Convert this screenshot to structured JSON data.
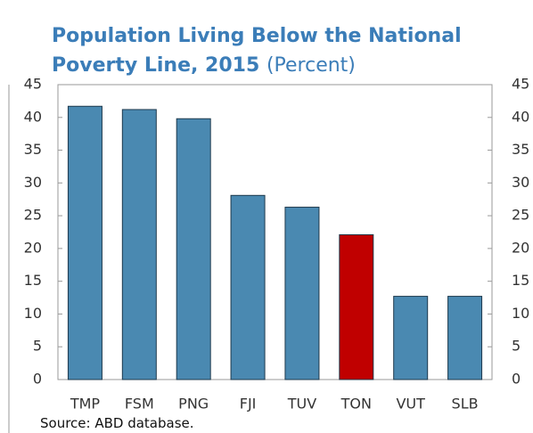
{
  "chart_data": {
    "type": "bar",
    "title": "Population Living Below the National Poverty Line, 2015",
    "subtitle": "(Percent)",
    "source": "Source: ABD database.",
    "categories": [
      "TMP",
      "FSM",
      "PNG",
      "FJI",
      "TUV",
      "TON",
      "VUT",
      "SLB"
    ],
    "values": [
      41.7,
      41.2,
      39.8,
      28.1,
      26.3,
      22.1,
      12.7,
      12.7
    ],
    "colors": [
      "#4a89b1",
      "#4a89b1",
      "#4a89b1",
      "#4a89b1",
      "#4a89b1",
      "#c00000",
      "#4a89b1",
      "#4a89b1"
    ],
    "ylim": [
      0,
      45
    ],
    "yticks": [
      0,
      5,
      10,
      15,
      20,
      25,
      30,
      35,
      40,
      45
    ],
    "y2lim": [
      0,
      45
    ],
    "y2ticks": [
      0,
      5,
      10,
      15,
      20,
      25,
      30,
      35,
      40,
      45
    ],
    "grid": false
  }
}
